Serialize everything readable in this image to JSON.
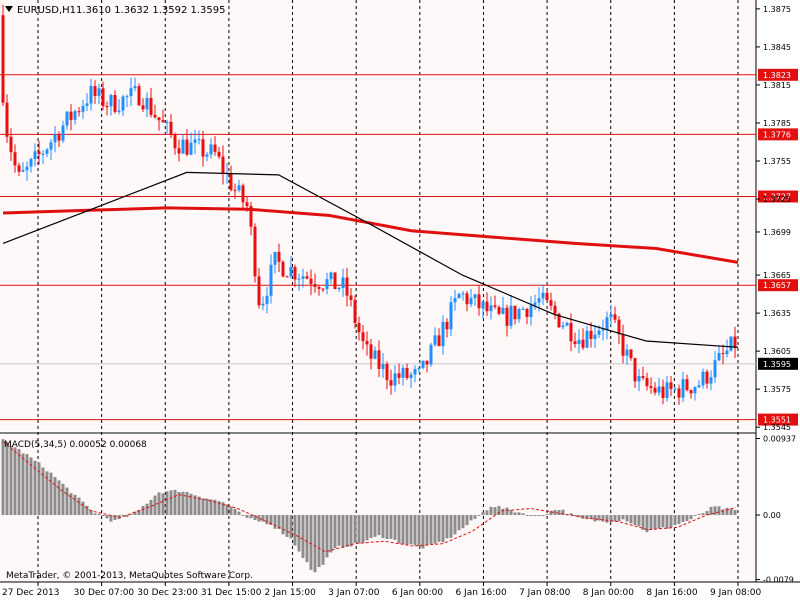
{
  "header": {
    "menu_icon": "triangle-down-icon",
    "symbol_title": "EURUSD,H1",
    "ohlc": "1.3610 1.3632 1.3592 1.3595"
  },
  "copyright": "MetaTrader, © 2001-2013, MetaQuotes Software Corp.",
  "colors": {
    "background": "#fff8f8",
    "bull": "#1f8fff",
    "bear": "#e81010",
    "ma_fast": "#000000",
    "ma_slow": "#e01010",
    "hline": "#e01010",
    "grid": "#000000",
    "macd_hist": "#8c8c8c",
    "macd_signal": "#e01010",
    "price_badge_bg": "#000000",
    "level_badge_bg": "#e01010"
  },
  "chart_data": [
    {
      "type": "candlestick",
      "symbol": "EURUSD",
      "timeframe": "H1",
      "ylim": [
        1.3542,
        1.3882
      ],
      "y_ticks": [
        "1.3875",
        "1.3845",
        "1.3815",
        "1.3785",
        "1.3755",
        "1.3725",
        "1.3699",
        "1.3665",
        "1.3635",
        "1.3605",
        "1.3575",
        "1.3545"
      ],
      "x_ticks": [
        "27 Dec 2013",
        "30 Dec 07:00",
        "30 Dec 23:00",
        "31 Dec 15:00",
        "2 Jan 15:00",
        "3 Jan 07:00",
        "6 Jan 00:00",
        "6 Jan 16:00",
        "7 Jan 08:00",
        "8 Jan 00:00",
        "8 Jan 16:00",
        "9 Jan 08:00"
      ],
      "horizontal_levels": [
        "1.3823",
        "1.3776",
        "1.3727",
        "1.3657",
        "1.3551"
      ],
      "current_price": "1.3595",
      "grid": "vertical dotted",
      "series": [
        {
          "kind": "sma_slow",
          "values": [
            1.3714,
            1.3716,
            1.3718,
            1.3717,
            1.3712,
            1.37,
            1.3695,
            1.369,
            1.3686,
            1.3675
          ]
        },
        {
          "kind": "sma_fast",
          "values": [
            1.369,
            1.3718,
            1.3746,
            1.3744,
            1.3705,
            1.3665,
            1.3634,
            1.3613,
            1.3608
          ]
        }
      ]
    },
    {
      "type": "bar",
      "title": "MACD(5,34,5) 0.00052 0.00068",
      "ylim": [
        -0.0082,
        0.0098
      ],
      "y_ticks": [
        "0.00937",
        "0.00",
        "-0.0079"
      ],
      "series": [
        {
          "kind": "histogram",
          "values": [
            0.0092,
            0.0075,
            0.0055,
            0.003,
            0.0005,
            -0.0008,
            0.0003,
            0.0028,
            0.003,
            0.0022,
            0.0015,
            -0.0005,
            -0.001,
            -0.003,
            -0.0072,
            -0.004,
            -0.0035,
            -0.0025,
            -0.0035,
            -0.004,
            -0.003,
            -0.001,
            0.0012,
            0.0005,
            -0.0002,
            0.0008,
            -0.0005,
            -0.0008,
            -0.0005,
            -0.002,
            -0.0015,
            -0.0005,
            0.001,
            0.0005
          ]
        },
        {
          "kind": "signal",
          "values": [
            0.009,
            0.006,
            0.003,
            0.0005,
            -0.0003,
            0.001,
            0.0025,
            0.0018,
            0.0008,
            -0.0008,
            -0.0025,
            -0.0045,
            -0.0035,
            -0.0032,
            -0.0038,
            -0.0035,
            -0.002,
            0.0005,
            0.0008,
            0.0002,
            -0.0004,
            -0.0008,
            -0.0018,
            -0.0015,
            0.0,
            0.0009
          ]
        }
      ]
    }
  ]
}
